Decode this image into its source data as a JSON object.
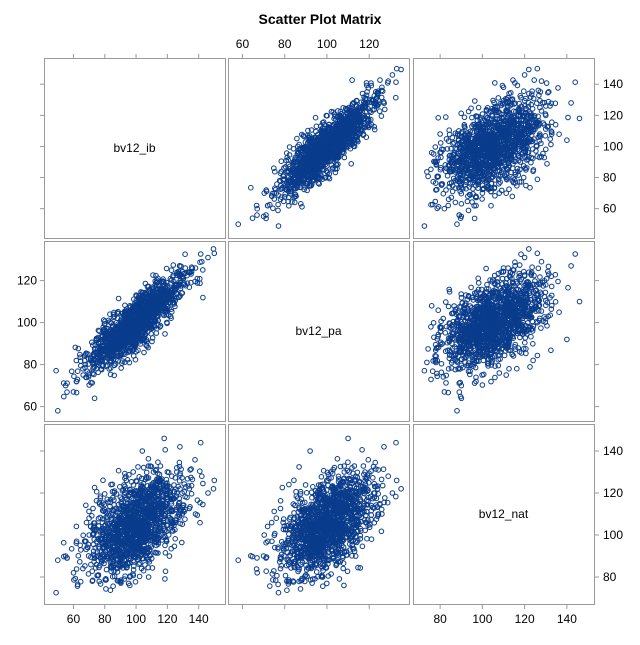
{
  "chart_data": {
    "type": "scatter",
    "title": "Scatter Plot Matrix",
    "variables": [
      "bv12_ib",
      "bv12_pa",
      "bv12_nat"
    ],
    "axes": {
      "bv12_ib": {
        "range": [
          45,
          153
        ],
        "ticks": [
          60,
          80,
          100,
          120,
          140
        ]
      },
      "bv12_pa": {
        "range": [
          56,
          136
        ],
        "ticks": [
          60,
          80,
          100,
          120
        ]
      },
      "bv12_nat": {
        "range": [
          70,
          150
        ],
        "ticks": [
          80,
          100,
          120,
          140
        ]
      }
    },
    "tick_label_placement": {
      "top": [
        "bv12_pa"
      ],
      "bottom": [
        "bv12_ib",
        "bv12_nat"
      ],
      "left": [
        "bv12_pa"
      ],
      "right": [
        "bv12_ib",
        "bv12_nat"
      ]
    },
    "marker": "open-circle",
    "marker_color": "#0a3c8c",
    "frame_color": "#9a9a9a",
    "background": "#ffffff",
    "distribution": {
      "bv12_ib": {
        "mean": 100,
        "sd": 15
      },
      "bv12_pa": {
        "mean": 100,
        "sd": 11
      },
      "bv12_nat": {
        "mean": 105,
        "sd": 12
      },
      "correlations": {
        "ib_pa": 0.85,
        "ib_nat": 0.5,
        "pa_nat": 0.5
      }
    },
    "sample_points": [
      {
        "bv12_ib": 50,
        "bv12_pa": 58,
        "bv12_nat": 88
      },
      {
        "bv12_ib": 55,
        "bv12_pa": 70,
        "bv12_nat": 90
      },
      {
        "bv12_ib": 60,
        "bv12_pa": 67,
        "bv12_nat": 82
      },
      {
        "bv12_ib": 62,
        "bv12_pa": 72,
        "bv12_nat": 97
      },
      {
        "bv12_ib": 66,
        "bv12_pa": 78,
        "bv12_nat": 84
      },
      {
        "bv12_ib": 70,
        "bv12_pa": 76,
        "bv12_nat": 108
      },
      {
        "bv12_ib": 72,
        "bv12_pa": 81,
        "bv12_nat": 78
      },
      {
        "bv12_ib": 75,
        "bv12_pa": 84,
        "bv12_nat": 100
      },
      {
        "bv12_ib": 78,
        "bv12_pa": 86,
        "bv12_nat": 92
      },
      {
        "bv12_ib": 80,
        "bv12_pa": 88,
        "bv12_nat": 112
      },
      {
        "bv12_ib": 83,
        "bv12_pa": 90,
        "bv12_nat": 96
      },
      {
        "bv12_ib": 85,
        "bv12_pa": 92,
        "bv12_nat": 104
      },
      {
        "bv12_ib": 88,
        "bv12_pa": 93,
        "bv12_nat": 88
      },
      {
        "bv12_ib": 90,
        "bv12_pa": 95,
        "bv12_nat": 118
      },
      {
        "bv12_ib": 92,
        "bv12_pa": 97,
        "bv12_nat": 100
      },
      {
        "bv12_ib": 95,
        "bv12_pa": 98,
        "bv12_nat": 106
      },
      {
        "bv12_ib": 98,
        "bv12_pa": 100,
        "bv12_nat": 94
      },
      {
        "bv12_ib": 100,
        "bv12_pa": 101,
        "bv12_nat": 110
      },
      {
        "bv12_ib": 102,
        "bv12_pa": 103,
        "bv12_nat": 102
      },
      {
        "bv12_ib": 105,
        "bv12_pa": 104,
        "bv12_nat": 122
      },
      {
        "bv12_ib": 108,
        "bv12_pa": 106,
        "bv12_nat": 98
      },
      {
        "bv12_ib": 110,
        "bv12_pa": 108,
        "bv12_nat": 114
      },
      {
        "bv12_ib": 112,
        "bv12_pa": 109,
        "bv12_nat": 106
      },
      {
        "bv12_ib": 115,
        "bv12_pa": 111,
        "bv12_nat": 126
      },
      {
        "bv12_ib": 118,
        "bv12_pa": 113,
        "bv12_nat": 108
      },
      {
        "bv12_ib": 120,
        "bv12_pa": 114,
        "bv12_nat": 118
      },
      {
        "bv12_ib": 123,
        "bv12_pa": 116,
        "bv12_nat": 102
      },
      {
        "bv12_ib": 126,
        "bv12_pa": 118,
        "bv12_nat": 130
      },
      {
        "bv12_ib": 130,
        "bv12_pa": 121,
        "bv12_nat": 114
      },
      {
        "bv12_ib": 134,
        "bv12_pa": 124,
        "bv12_nat": 122
      },
      {
        "bv12_ib": 138,
        "bv12_pa": 126,
        "bv12_nat": 110
      },
      {
        "bv12_ib": 142,
        "bv12_pa": 129,
        "bv12_nat": 128
      },
      {
        "bv12_ib": 146,
        "bv12_pa": 131,
        "bv12_nat": 120
      },
      {
        "bv12_ib": 150,
        "bv12_pa": 133,
        "bv12_nat": 126
      },
      {
        "bv12_ib": 128,
        "bv12_pa": 127,
        "bv12_nat": 142
      },
      {
        "bv12_ib": 118,
        "bv12_pa": 110,
        "bv12_nat": 146
      },
      {
        "bv12_ib": 104,
        "bv12_pa": 92,
        "bv12_nat": 140
      },
      {
        "bv12_ib": 96,
        "bv12_pa": 108,
        "bv12_nat": 76
      },
      {
        "bv12_ib": 108,
        "bv12_pa": 98,
        "bv12_nat": 80
      },
      {
        "bv12_ib": 84,
        "bv12_pa": 82,
        "bv12_nat": 124
      }
    ]
  }
}
